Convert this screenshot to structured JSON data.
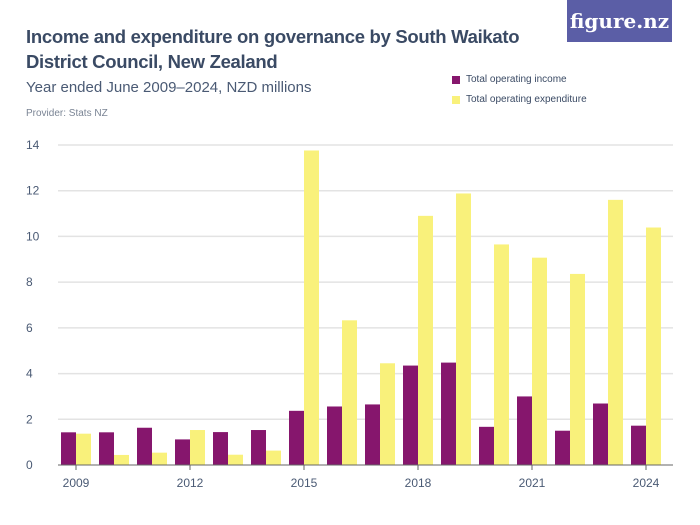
{
  "title": "Income and expenditure on governance by South Waikato District Council, New Zealand",
  "subtitle": "Year ended June 2009–2024, NZD millions",
  "provider": "Provider: Stats NZ",
  "logo": "figure.nz",
  "colors": {
    "income": "#86166d",
    "expenditure": "#f9f17b",
    "grid": "#e3e3e3",
    "axis": "#666666"
  },
  "chart_data": {
    "type": "bar",
    "categories": [
      "2009",
      "2010",
      "2011",
      "2012",
      "2013",
      "2014",
      "2015",
      "2016",
      "2017",
      "2018",
      "2019",
      "2020",
      "2021",
      "2022",
      "2023",
      "2024"
    ],
    "x_tick_labels": [
      "2009",
      "2012",
      "2015",
      "2018",
      "2021",
      "2024"
    ],
    "y_ticks": [
      0,
      2,
      4,
      6,
      8,
      10,
      12,
      14
    ],
    "ylim": [
      0,
      14
    ],
    "grid": true,
    "legend_placement": "top-right",
    "series": [
      {
        "name": "Total operating income",
        "values": [
          1.43,
          1.43,
          1.63,
          1.12,
          1.44,
          1.53,
          2.37,
          2.56,
          2.65,
          4.35,
          4.48,
          1.67,
          3.0,
          1.5,
          2.69,
          1.72
        ]
      },
      {
        "name": "Total operating expenditure",
        "values": [
          1.37,
          0.44,
          0.54,
          1.53,
          0.45,
          0.63,
          13.76,
          6.33,
          4.45,
          10.9,
          11.88,
          9.65,
          9.07,
          8.36,
          11.6,
          10.39
        ]
      }
    ]
  }
}
